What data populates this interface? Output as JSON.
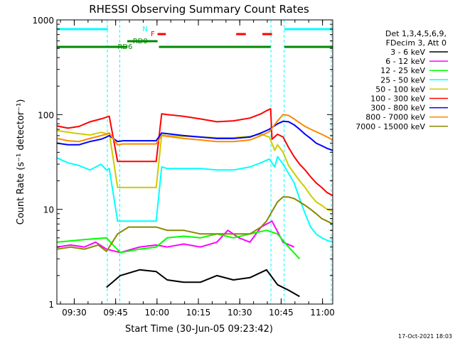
{
  "chart_data": {
    "type": "line",
    "title": "RHESSI Observing Summary Count Rates",
    "xlabel": "Start Time (30-Jun-05 09:23:42)",
    "ylabel": "Count Rate (s⁻¹ detector⁻¹)",
    "x_unit": "minutes after 09:23:42",
    "xlim": [
      0,
      100
    ],
    "ylim": [
      1,
      1000
    ],
    "yscale": "log",
    "x_ticks": [
      {
        "x": 6.3,
        "label": "09:30"
      },
      {
        "x": 21.3,
        "label": "09:45"
      },
      {
        "x": 36.3,
        "label": "10:00"
      },
      {
        "x": 51.3,
        "label": "10:15"
      },
      {
        "x": 66.3,
        "label": "10:30"
      },
      {
        "x": 81.3,
        "label": "10:45"
      },
      {
        "x": 96.3,
        "label": "11:00"
      }
    ],
    "y_ticks": [
      {
        "y": 1,
        "label": "1"
      },
      {
        "y": 10,
        "label": "10"
      },
      {
        "y": 100,
        "label": "100"
      },
      {
        "y": 1000,
        "label": "1000"
      }
    ],
    "legend_header": [
      "Det 1,3,4,5,6,9,",
      "FDecim 3, Att 0"
    ],
    "legend_placement": "right",
    "timestamp": "17-Oct-2021 18:03",
    "annotations": [
      {
        "text": "N",
        "color": "#00ffff"
      },
      {
        "text": "F",
        "color": "#ff0000"
      },
      {
        "text": "RD0",
        "color": "#008800"
      },
      {
        "text": "RD6",
        "color": "#008800"
      }
    ],
    "flag_bars": [
      {
        "name": "N",
        "color": "#00ffff",
        "segments": [
          [
            0,
            18.5
          ],
          [
            82.5,
            100
          ]
        ]
      },
      {
        "name": "F",
        "color": "#ff0000",
        "segments": [
          [
            36.5,
            39.5
          ],
          [
            65,
            68.5
          ],
          [
            74.5,
            78
          ]
        ]
      },
      {
        "name": "RD0",
        "color": "#008800",
        "segments": [
          [
            25.5,
            36.5
          ]
        ]
      },
      {
        "name": "RD6",
        "color": "#008800",
        "segments": [
          [
            0,
            25.5
          ],
          [
            37,
            77.5
          ],
          [
            82.5,
            100
          ]
        ]
      }
    ],
    "saa_markers": [
      {
        "x": 18.3,
        "color": "#00ffff"
      },
      {
        "x": 22.8,
        "color": "#00ffff"
      },
      {
        "x": 77.6,
        "color": "#00ffff"
      },
      {
        "x": 82.4,
        "color": "#00ffff"
      },
      {
        "x": 99.5,
        "color": "#00ffff"
      }
    ],
    "series": [
      {
        "name": "3 - 6 keV",
        "color": "#000000",
        "x": [
          18,
          23,
          30,
          36,
          40,
          46,
          52,
          58,
          64,
          70,
          76,
          80,
          84,
          88
        ],
        "y": [
          1.5,
          2.0,
          2.3,
          2.2,
          1.8,
          1.7,
          1.7,
          2.0,
          1.8,
          1.9,
          2.3,
          1.6,
          1.4,
          1.2
        ]
      },
      {
        "name": "6 - 12 keV",
        "color": "#ff00ff",
        "x": [
          0,
          5,
          10,
          14,
          18,
          23,
          30,
          36,
          40,
          46,
          52,
          58,
          62,
          66,
          70,
          74,
          78,
          82,
          86
        ],
        "y": [
          4.0,
          4.2,
          4.0,
          4.5,
          3.8,
          3.5,
          4.0,
          4.2,
          4.0,
          4.3,
          4.0,
          4.5,
          6.0,
          5.0,
          4.5,
          6.5,
          7.5,
          4.5,
          4.0
        ]
      },
      {
        "name": "12 - 25 keV",
        "color": "#00ff00",
        "x": [
          0,
          10,
          18,
          23,
          30,
          36,
          40,
          46,
          52,
          58,
          64,
          70,
          76,
          80,
          84,
          88
        ],
        "y": [
          4.5,
          4.8,
          5.0,
          3.5,
          3.8,
          4.0,
          5.0,
          5.2,
          5.0,
          5.5,
          5.0,
          5.5,
          6.0,
          5.5,
          4.0,
          3.0
        ]
      },
      {
        "name": "25 - 50 keV",
        "color": "#00ffff",
        "x": [
          0,
          4,
          8,
          12,
          16,
          18,
          19,
          22,
          24,
          30,
          36,
          38,
          40,
          46,
          52,
          58,
          64,
          70,
          74,
          77,
          79,
          80,
          82,
          84,
          86,
          88,
          90,
          92,
          94,
          96,
          98,
          100
        ],
        "y": [
          35,
          31,
          29,
          26,
          30,
          26,
          27,
          7.5,
          7.5,
          7.5,
          7.5,
          28,
          27,
          27,
          27,
          26,
          26,
          28,
          31,
          34,
          28,
          36,
          30,
          24,
          19,
          13,
          9,
          6.5,
          5.5,
          5.0,
          4.7,
          4.5
        ]
      },
      {
        "name": "50 - 100 keV",
        "color": "#cccc00",
        "x": [
          0,
          6,
          12,
          16,
          18,
          19,
          22,
          24,
          30,
          36,
          38,
          40,
          46,
          52,
          58,
          64,
          70,
          74,
          77,
          79,
          80,
          82,
          84,
          86,
          88,
          90,
          92,
          94,
          96,
          98,
          100
        ],
        "y": [
          68,
          64,
          61,
          65,
          63,
          64,
          17,
          17,
          17,
          17,
          61,
          60,
          59,
          58,
          57,
          57,
          59,
          62,
          58,
          42,
          48,
          40,
          29,
          24,
          20,
          17,
          14,
          12,
          11,
          10,
          9.5
        ]
      },
      {
        "name": "100 - 300 keV",
        "color": "#ff0000",
        "x": [
          0,
          4,
          8,
          12,
          16,
          18,
          19,
          22,
          24,
          30,
          36,
          38,
          40,
          46,
          52,
          58,
          64,
          70,
          74,
          76,
          77.5,
          78,
          80,
          82,
          84,
          86,
          88,
          90,
          92,
          94,
          96,
          98,
          100
        ],
        "y": [
          76,
          72,
          75,
          84,
          90,
          94,
          96,
          32,
          32,
          32,
          32,
          102,
          100,
          96,
          90,
          84,
          86,
          92,
          102,
          110,
          115,
          55,
          62,
          58,
          45,
          36,
          30,
          26,
          22,
          19,
          17,
          15,
          14
        ]
      },
      {
        "name": "300 - 800 keV",
        "color": "#0000ff",
        "x": [
          0,
          4,
          8,
          12,
          16,
          18,
          19,
          22,
          24,
          30,
          36,
          38,
          40,
          46,
          52,
          58,
          64,
          70,
          74,
          77,
          80,
          82,
          84,
          86,
          88,
          90,
          92,
          94,
          96,
          98,
          100
        ],
        "y": [
          50,
          48,
          48,
          52,
          55,
          58,
          60,
          52,
          53,
          53,
          53,
          64,
          63,
          60,
          58,
          56,
          56,
          58,
          64,
          70,
          80,
          85,
          84,
          78,
          70,
          62,
          56,
          50,
          47,
          44,
          42
        ]
      },
      {
        "name": "800 - 7000 keV",
        "color": "#ff8800",
        "x": [
          0,
          4,
          8,
          12,
          16,
          18,
          19,
          22,
          24,
          30,
          36,
          38,
          40,
          46,
          52,
          58,
          64,
          70,
          74,
          77,
          80,
          82,
          84,
          86,
          88,
          90,
          92,
          94,
          96,
          98,
          100
        ],
        "y": [
          56,
          53,
          52,
          56,
          60,
          62,
          64,
          48,
          49,
          49,
          49,
          60,
          59,
          56,
          54,
          52,
          52,
          54,
          60,
          66,
          86,
          100,
          98,
          90,
          82,
          75,
          70,
          66,
          62,
          58,
          54
        ]
      },
      {
        "name": "7000 - 15000 keV",
        "color": "#888800",
        "x": [
          0,
          5,
          10,
          15,
          18,
          22,
          26,
          30,
          36,
          40,
          46,
          52,
          58,
          64,
          70,
          74,
          76,
          78,
          80,
          82,
          84,
          86,
          88,
          90,
          92,
          94,
          96,
          98,
          100
        ],
        "y": [
          3.8,
          4.0,
          3.8,
          4.2,
          3.6,
          5.5,
          6.5,
          6.5,
          6.5,
          6.0,
          6.0,
          5.5,
          5.5,
          5.5,
          5.5,
          6.5,
          7.5,
          9.5,
          12,
          13.5,
          13.5,
          13,
          12,
          11,
          10,
          9,
          8,
          7.5,
          7
        ]
      }
    ]
  }
}
